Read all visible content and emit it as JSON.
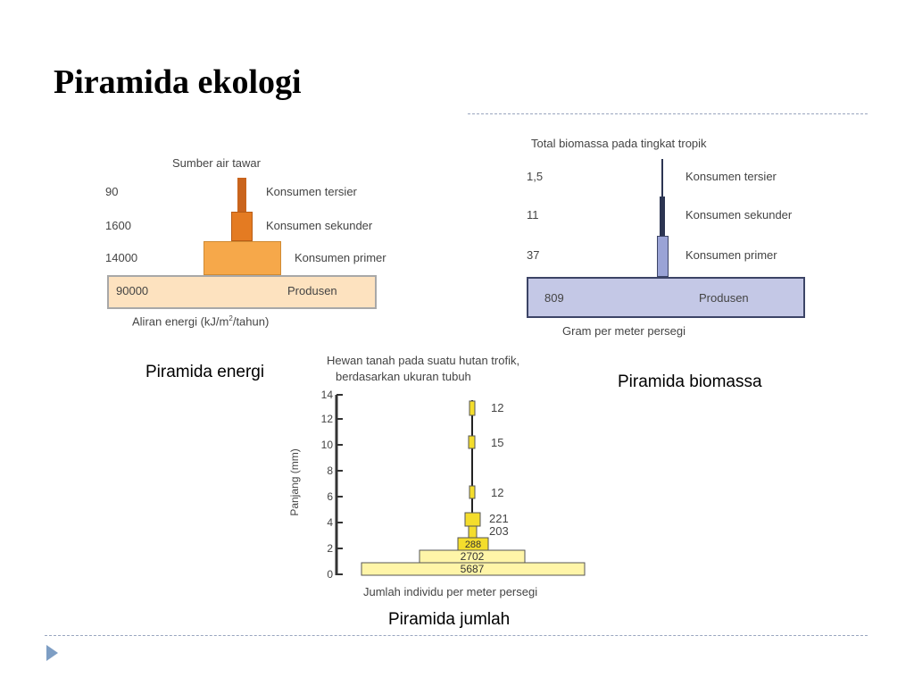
{
  "title": "Piramida ekologi",
  "energy": {
    "caption": "Piramida energi",
    "top_label": "Sumber air tawar",
    "axis_label_pre": "Aliran energi (kJ/m",
    "axis_label_sup": "2",
    "axis_label_post": "/tahun)",
    "levels": [
      {
        "value": "90",
        "name": "Konsumen tersier"
      },
      {
        "value": "1600",
        "name": "Konsumen sekunder"
      },
      {
        "value": "14000",
        "name": "Konsumen primer"
      },
      {
        "value": "90000",
        "name": "Produsen"
      }
    ]
  },
  "biomass": {
    "caption": "Piramida biomassa",
    "top_label": "Total biomassa pada tingkat tropik",
    "axis_label": "Gram per meter persegi",
    "levels": [
      {
        "value": "1,5",
        "name": "Konsumen tersier"
      },
      {
        "value": "11",
        "name": "Konsumen sekunder"
      },
      {
        "value": "37",
        "name": "Konsumen primer"
      },
      {
        "value": "809",
        "name": "Produsen"
      }
    ]
  },
  "numbers": {
    "caption": "Piramida jumlah",
    "top_label_1": "Hewan tanah pada suatu hutan trofik,",
    "top_label_2": "berdasarkan ukuran tubuh",
    "ylabel": "Panjang (mm)",
    "xlabel": "Jumlah individu per meter persegi",
    "yticks": [
      "0",
      "2",
      "4",
      "6",
      "8",
      "10",
      "12",
      "14"
    ],
    "bars": [
      {
        "value": "5687"
      },
      {
        "value": "2702"
      },
      {
        "value": "288"
      },
      {
        "value": "203"
      },
      {
        "value": "221"
      },
      {
        "value": "12"
      },
      {
        "value": "15"
      },
      {
        "value": "12"
      }
    ]
  },
  "colors": {
    "energy_produsen": "#fde2bf",
    "energy_primer": "#f6a84a",
    "energy_sekunder": "#e47b22",
    "energy_tersier": "#c9641d",
    "biomass_produsen": "#c4c8e6",
    "biomass_primer": "#9aa3d6",
    "biomass_stem": "#2c3552",
    "numbers_bar": "#fff5a8",
    "numbers_small": "#f4dd2c"
  }
}
